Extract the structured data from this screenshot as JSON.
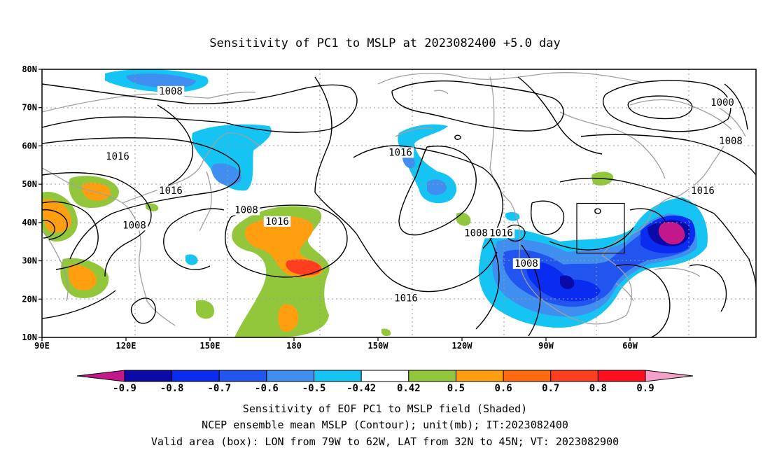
{
  "title": "Sensitivity of PC1 to MSLP at 2023082400 +5.0 day",
  "map": {
    "lat_ticks": [
      "80N",
      "70N",
      "60N",
      "50N",
      "40N",
      "30N",
      "20N",
      "10N"
    ],
    "lon_ticks": [
      "90E",
      "120E",
      "150E",
      "180",
      "150W",
      "120W",
      "90W",
      "60W"
    ],
    "lon_range": [
      90,
      345
    ],
    "lat_range": [
      10,
      80
    ],
    "grid": "dotted",
    "contour_color": "#000000",
    "coastline_color": "#a0a0a0",
    "contour_labels": [
      {
        "text": "1008",
        "lon": 136,
        "lat": 74
      },
      {
        "text": "1016",
        "lon": 117,
        "lat": 57
      },
      {
        "text": "1016",
        "lon": 136,
        "lat": 48
      },
      {
        "text": "1008",
        "lon": 123,
        "lat": 39
      },
      {
        "text": "1008",
        "lon": 163,
        "lat": 43
      },
      {
        "text": "1016",
        "lon": 174,
        "lat": 40
      },
      {
        "text": "1016",
        "lon": 218,
        "lat": 58
      },
      {
        "text": "1016",
        "lon": 220,
        "lat": 20
      },
      {
        "text": "1000",
        "lon": 333,
        "lat": 71
      },
      {
        "text": "1008",
        "lon": 336,
        "lat": 61
      },
      {
        "text": "1016",
        "lon": 326,
        "lat": 48
      },
      {
        "text": "1008",
        "lon": 245,
        "lat": 37
      },
      {
        "text": "1016",
        "lon": 254,
        "lat": 37
      },
      {
        "text": "1008",
        "lon": 263,
        "lat": 29
      }
    ],
    "valid_box": {
      "lon_min": 281,
      "lon_max": 298,
      "lat_min": 32,
      "lat_max": 45
    }
  },
  "colorbar": {
    "labels": [
      "-0.9",
      "-0.8",
      "-0.7",
      "-0.6",
      "-0.5",
      "-0.42",
      "0.42",
      "0.5",
      "0.6",
      "0.7",
      "0.8",
      "0.9"
    ],
    "colors": [
      "#c2188a",
      "#0a0aa8",
      "#0a2cf0",
      "#2255f0",
      "#3f8ef0",
      "#16c4f4",
      "#ffffff",
      "#92c73c",
      "#ff9f10",
      "#ff6a10",
      "#ff3e1f",
      "#ff0e1e",
      "#f5a0c8"
    ]
  },
  "caption": {
    "line1": "Sensitivity of EOF PC1 to MSLP field (Shaded)",
    "line2": "NCEP ensemble mean MSLP (Contour); unit(mb); IT:2023082400",
    "line3": "Valid area (box): LON from 79W to 62W, LAT from 32N to 45N; VT: 2023082900"
  }
}
